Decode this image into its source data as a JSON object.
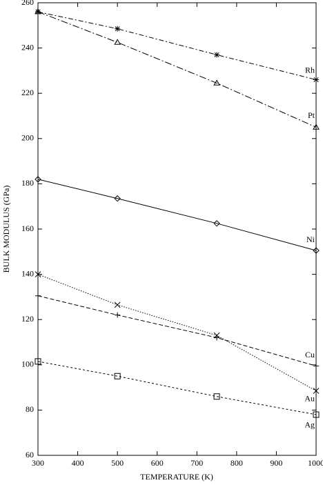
{
  "chart_data": {
    "type": "line",
    "x_label": "TEMPERATURE (K)",
    "y_label": "BULK MODULUS (GPa)",
    "x": [
      300,
      500,
      750,
      1000
    ],
    "xlim": [
      300,
      1000
    ],
    "xticks": [
      300,
      400,
      500,
      600,
      700,
      800,
      900,
      1000
    ],
    "ylim": [
      60,
      260
    ],
    "yticks": [
      60,
      80,
      100,
      120,
      140,
      160,
      180,
      200,
      220,
      240,
      260
    ],
    "grid": false,
    "series": [
      {
        "name": "Rh",
        "color": "#000000",
        "marker": "asterisk",
        "dash": "dashdot",
        "values": [
          256,
          248.5,
          237,
          226
        ]
      },
      {
        "name": "Pt",
        "color": "#000000",
        "marker": "triangle",
        "dash": "longdashdot",
        "values": [
          256,
          242.5,
          224.5,
          205
        ]
      },
      {
        "name": "Ni",
        "color": "#000000",
        "marker": "diamond",
        "dash": "solid",
        "values": [
          182,
          173.5,
          162.5,
          150.5
        ]
      },
      {
        "name": "Cu",
        "color": "#000000",
        "marker": "plus",
        "dash": "dashed",
        "values": [
          130.5,
          122,
          112,
          99.5
        ]
      },
      {
        "name": "Au",
        "color": "#000000",
        "marker": "x",
        "dash": "dotted",
        "values": [
          140,
          126.5,
          113,
          88.5
        ]
      },
      {
        "name": "Ag",
        "color": "#000000",
        "marker": "square",
        "dash": "shortdashed",
        "values": [
          101.5,
          95,
          86,
          78
        ]
      }
    ]
  }
}
